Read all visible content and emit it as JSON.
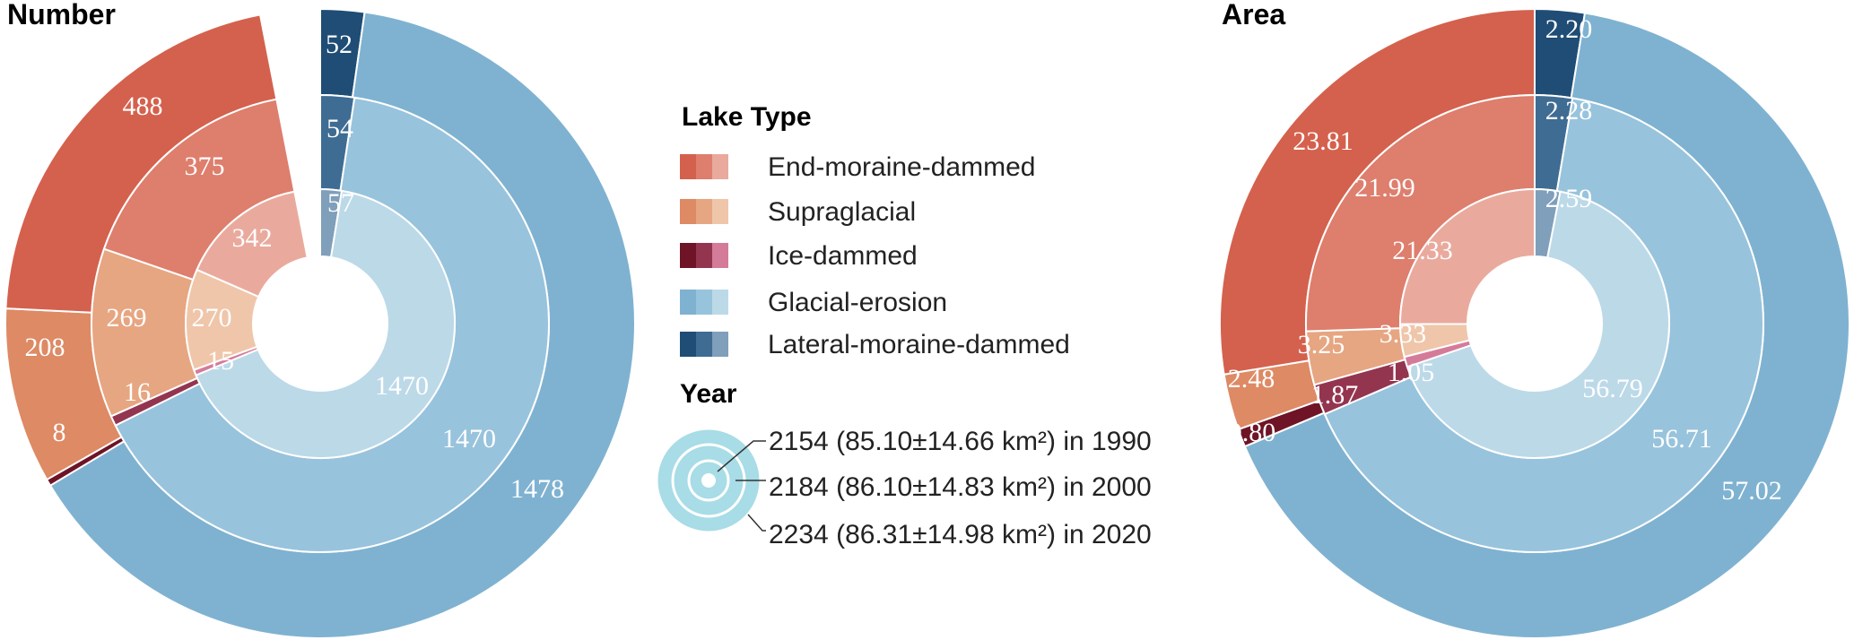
{
  "colors": {
    "end-moraine-dammed": [
      "#d4614d",
      "#de7e6d",
      "#e9aa9d"
    ],
    "supraglacial": [
      "#dd8a65",
      "#e6a681",
      "#efc6aa"
    ],
    "ice-dammed": [
      "#6e1426",
      "#943550",
      "#d57b9a"
    ],
    "glacial-erosion": [
      "#7fb2d1",
      "#98c3dc",
      "#bcd9e8"
    ],
    "lateral-moraine-dammed": [
      "#1f4d75",
      "#3f6c92",
      "#7f9fba"
    ],
    "year_icon": "#a8dce6"
  },
  "legend": {
    "lake_type_title": "Lake Type",
    "year_title": "Year",
    "types": [
      {
        "key": "end-moraine-dammed",
        "label": "End-moraine-dammed"
      },
      {
        "key": "supraglacial",
        "label": "Supraglacial"
      },
      {
        "key": "ice-dammed",
        "label": "Ice-dammed"
      },
      {
        "key": "glacial-erosion",
        "label": "Glacial-erosion"
      },
      {
        "key": "lateral-moraine-dammed",
        "label": "Lateral-moraine-dammed"
      }
    ],
    "years": [
      "2154 (85.10±14.66 km²) in 1990",
      "2184 (86.10±14.83 km²) in 2000",
      "2234 (86.31±14.98 km²) in 2020"
    ]
  },
  "chart_data": [
    {
      "type": "pie",
      "title": "Number",
      "ring_years": [
        "2020",
        "2000",
        "1990"
      ],
      "categories": [
        "Lateral-moraine-dammed",
        "Glacial-erosion",
        "Ice-dammed",
        "Supraglacial",
        "End-moraine-dammed"
      ],
      "series": [
        {
          "year": "2020",
          "values": [
            52,
            1478,
            8,
            208,
            488
          ],
          "labels": [
            "52",
            "1478",
            "8",
            "208",
            "488"
          ]
        },
        {
          "year": "2000",
          "values": [
            54,
            1470,
            16,
            269,
            375
          ],
          "labels": [
            "54",
            "1470",
            "16",
            "269",
            "375"
          ]
        },
        {
          "year": "1990",
          "values": [
            57,
            1470,
            15,
            270,
            342
          ],
          "labels": [
            "57",
            "1470",
            "15",
            "270",
            "342"
          ]
        }
      ]
    },
    {
      "type": "pie",
      "title": "Area",
      "ring_years": [
        "2020",
        "2000",
        "1990"
      ],
      "categories": [
        "Lateral-moraine-dammed",
        "Glacial-erosion",
        "Ice-dammed",
        "Supraglacial",
        "End-moraine-dammed"
      ],
      "series": [
        {
          "year": "2020",
          "values": [
            2.2,
            57.02,
            0.8,
            2.48,
            23.81
          ],
          "labels": [
            "2.20",
            "57.02",
            "0.80",
            "2.48",
            "23.81"
          ]
        },
        {
          "year": "2000",
          "values": [
            2.28,
            56.71,
            1.87,
            3.25,
            21.99
          ],
          "labels": [
            "2.28",
            "56.71",
            "1.87",
            "3.25",
            "21.99"
          ]
        },
        {
          "year": "1990",
          "values": [
            2.59,
            56.79,
            1.05,
            3.33,
            21.33
          ],
          "labels": [
            "2.59",
            "56.79",
            "1.05",
            "3.33",
            "21.33"
          ]
        }
      ]
    }
  ]
}
